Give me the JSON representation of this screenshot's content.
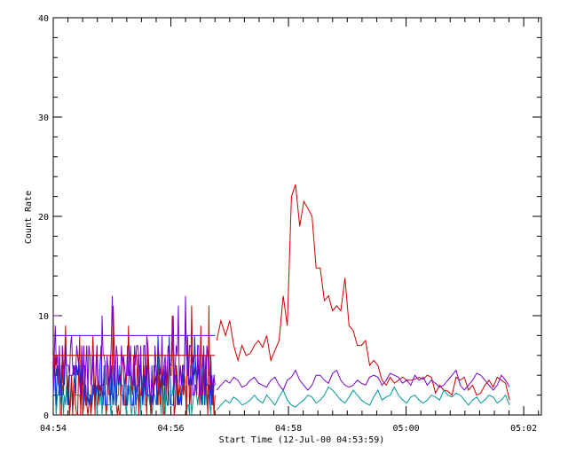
{
  "chart_data": {
    "type": "line",
    "title": "",
    "xlabel": "Start Time (12-Jul-00 04:53:59)",
    "ylabel": "Count Rate",
    "x_unit": "minutes after 04:54",
    "xlim": [
      0,
      8.3
    ],
    "ylim": [
      0,
      40
    ],
    "x_ticks": [
      {
        "value": 0,
        "label": "04:54"
      },
      {
        "value": 2,
        "label": "04:56"
      },
      {
        "value": 4,
        "label": "04:58"
      },
      {
        "value": 6,
        "label": "05:00"
      },
      {
        "value": 8,
        "label": "05:02"
      }
    ],
    "y_ticks": [
      {
        "value": 0,
        "label": "0"
      },
      {
        "value": 10,
        "label": "10"
      },
      {
        "value": 20,
        "label": "20"
      },
      {
        "value": 30,
        "label": "30"
      },
      {
        "value": 40,
        "label": "40"
      }
    ],
    "grid": false,
    "legend": "none",
    "series": [
      {
        "color": "#cc0000",
        "x": [
          2.78,
          2.85,
          2.93,
          3.0,
          3.07,
          3.14,
          3.21,
          3.28,
          3.35,
          3.42,
          3.49,
          3.56,
          3.63,
          3.7,
          3.77,
          3.84,
          3.91,
          3.98,
          4.05,
          4.12,
          4.19,
          4.26,
          4.33,
          4.4,
          4.47,
          4.54,
          4.61,
          4.68,
          4.75,
          4.82,
          4.89,
          4.96,
          5.03,
          5.1,
          5.17,
          5.24,
          5.31,
          5.38,
          5.45,
          5.52,
          5.59,
          5.66,
          5.73,
          5.8,
          5.87,
          5.94,
          6.01,
          6.08,
          6.15,
          6.22,
          6.29,
          6.36,
          6.43,
          6.5,
          6.57,
          6.64,
          6.71,
          6.78,
          6.85,
          6.92,
          6.99,
          7.06,
          7.13,
          7.2,
          7.27,
          7.34,
          7.41,
          7.48,
          7.55,
          7.62,
          7.69,
          7.76
        ],
        "y": [
          7.5,
          9.5,
          8.0,
          9.5,
          7.0,
          5.5,
          7.0,
          6.0,
          6.2,
          7.0,
          7.5,
          6.8,
          8.0,
          5.5,
          6.5,
          7.5,
          12.0,
          9.0,
          22.0,
          23.2,
          19.0,
          21.5,
          20.8,
          20.0,
          14.8,
          14.8,
          11.5,
          12.0,
          10.5,
          11.0,
          10.5,
          13.8,
          9.0,
          8.5,
          7.0,
          7.0,
          7.5,
          5.0,
          5.5,
          5.0,
          3.5,
          3.0,
          3.8,
          3.2,
          3.5,
          3.8,
          3.5,
          3.5,
          3.6,
          3.8,
          3.6,
          4.0,
          3.8,
          2.2,
          3.0,
          2.5,
          2.4,
          2.0,
          3.8,
          3.5,
          3.8,
          2.5,
          3.0,
          2.0,
          2.2,
          3.0,
          3.5,
          2.8,
          3.8,
          3.5,
          3.2,
          1.5
        ]
      },
      {
        "color": "#7700cc",
        "x": [
          2.78,
          2.85,
          2.93,
          3.0,
          3.07,
          3.14,
          3.21,
          3.28,
          3.35,
          3.42,
          3.49,
          3.56,
          3.63,
          3.7,
          3.77,
          3.84,
          3.91,
          3.98,
          4.05,
          4.12,
          4.19,
          4.26,
          4.33,
          4.4,
          4.47,
          4.54,
          4.61,
          4.68,
          4.75,
          4.82,
          4.89,
          4.96,
          5.03,
          5.1,
          5.17,
          5.24,
          5.31,
          5.38,
          5.45,
          5.52,
          5.59,
          5.66,
          5.73,
          5.8,
          5.87,
          5.94,
          6.01,
          6.08,
          6.15,
          6.22,
          6.29,
          6.36,
          6.43,
          6.5,
          6.57,
          6.64,
          6.71,
          6.78,
          6.85,
          6.92,
          6.99,
          7.06,
          7.13,
          7.2,
          7.27,
          7.34,
          7.41,
          7.48,
          7.55,
          7.62,
          7.69,
          7.76
        ],
        "y": [
          2.5,
          3.0,
          3.5,
          3.2,
          3.8,
          3.5,
          2.8,
          3.0,
          3.5,
          3.8,
          3.2,
          3.0,
          2.8,
          3.5,
          3.8,
          3.0,
          2.5,
          3.5,
          3.8,
          4.5,
          3.5,
          3.0,
          2.5,
          3.0,
          4.0,
          4.0,
          3.5,
          3.2,
          4.2,
          4.5,
          3.5,
          3.0,
          2.8,
          3.0,
          3.5,
          3.2,
          3.0,
          3.8,
          4.0,
          3.8,
          3.0,
          3.5,
          4.2,
          4.0,
          3.8,
          3.2,
          3.5,
          3.0,
          4.0,
          3.5,
          3.8,
          3.0,
          3.5,
          3.2,
          2.8,
          3.0,
          3.5,
          4.0,
          4.5,
          3.0,
          2.5,
          3.0,
          3.5,
          4.2,
          4.0,
          3.5,
          3.0,
          2.5,
          3.0,
          4.0,
          3.5,
          2.8
        ]
      },
      {
        "color": "#009999",
        "x": [
          2.78,
          2.85,
          2.93,
          3.0,
          3.07,
          3.14,
          3.21,
          3.28,
          3.35,
          3.42,
          3.49,
          3.56,
          3.63,
          3.7,
          3.77,
          3.84,
          3.91,
          3.98,
          4.05,
          4.12,
          4.19,
          4.26,
          4.33,
          4.4,
          4.47,
          4.54,
          4.61,
          4.68,
          4.75,
          4.82,
          4.89,
          4.96,
          5.03,
          5.1,
          5.17,
          5.24,
          5.31,
          5.38,
          5.45,
          5.52,
          5.59,
          5.66,
          5.73,
          5.8,
          5.87,
          5.94,
          6.01,
          6.08,
          6.15,
          6.22,
          6.29,
          6.36,
          6.43,
          6.5,
          6.57,
          6.64,
          6.71,
          6.78,
          6.85,
          6.92,
          6.99,
          7.06,
          7.13,
          7.2,
          7.27,
          7.34,
          7.41,
          7.48,
          7.55,
          7.62,
          7.69,
          7.76
        ],
        "y": [
          0.5,
          1.0,
          1.5,
          1.2,
          1.8,
          1.5,
          1.0,
          1.2,
          1.5,
          2.0,
          1.5,
          1.2,
          2.0,
          1.5,
          1.0,
          1.8,
          2.5,
          1.5,
          1.0,
          0.8,
          1.2,
          1.5,
          2.0,
          1.8,
          1.2,
          1.5,
          2.0,
          2.8,
          2.5,
          2.0,
          1.5,
          1.2,
          1.8,
          2.5,
          2.0,
          1.5,
          1.2,
          1.0,
          1.8,
          2.5,
          1.5,
          1.8,
          2.0,
          2.8,
          2.0,
          1.5,
          1.2,
          1.8,
          2.0,
          1.5,
          1.2,
          1.5,
          2.0,
          1.8,
          1.5,
          2.5,
          2.0,
          1.8,
          2.2,
          2.0,
          1.5,
          1.0,
          1.5,
          1.8,
          1.2,
          1.5,
          2.0,
          1.8,
          1.2,
          1.5,
          2.0,
          1.0
        ]
      }
    ]
  }
}
